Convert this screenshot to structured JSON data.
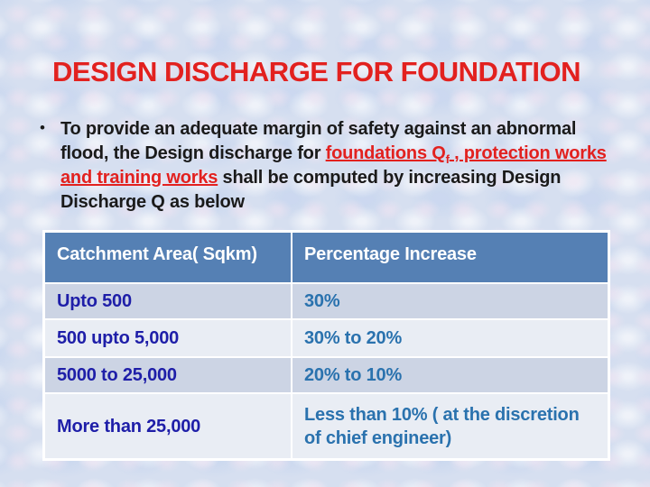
{
  "slide": {
    "title": "DESIGN DISCHARGE FOR FOUNDATION",
    "bullet_char": "•",
    "paragraph": {
      "text_before": "To provide an adequate margin of safety against an abnormal flood, the Design discharge for ",
      "highlight_main": "foundations Q",
      "highlight_sub": "f",
      "highlight_rest": " , protection works and training works",
      "text_after": " shall be computed by increasing Design Discharge Q as below"
    },
    "table": {
      "headers": [
        "Catchment Area( Sqkm)",
        "Percentage Increase"
      ],
      "rows": [
        [
          "Upto 500",
          "30%"
        ],
        [
          "500 upto 5,000",
          "30% to 20%"
        ],
        [
          "5000 to 25,000",
          "20% to 10%"
        ],
        [
          "More than 25,000",
          "Less than 10% ( at the discretion of chief engineer)"
        ]
      ]
    },
    "colors": {
      "title_red": "#e2211f",
      "highlight_red": "#e2211f",
      "body_text": "#1a1a1a",
      "background": "#d6dff0",
      "table_header_bg": "#5580b4",
      "table_row_dark": "#ccd4e4",
      "table_row_light": "#e9edf4",
      "table_border": "#ffffff",
      "column1_text": "#1e1ea8",
      "column2_text": "#2a72ae"
    }
  }
}
